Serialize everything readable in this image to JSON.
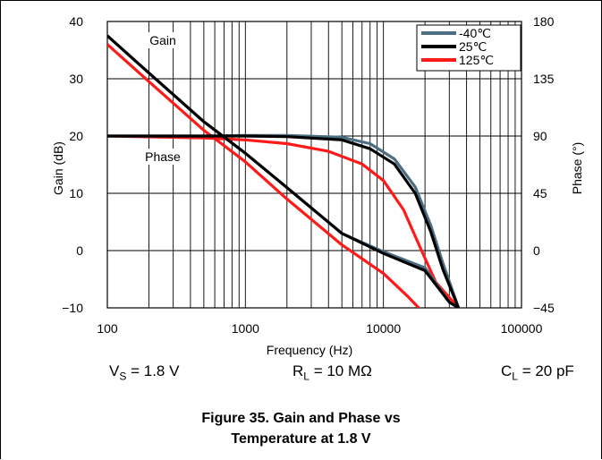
{
  "chart_data": {
    "type": "line",
    "title": "",
    "xlabel": "Frequency (Hz)",
    "ylabel": "Gain (dB)",
    "y2label": "Phase (°)",
    "xscale": "log",
    "xlim": [
      100,
      100000
    ],
    "ylim": [
      -10,
      40
    ],
    "y2lim": [
      -45,
      180
    ],
    "xticks": [
      "100",
      "1000",
      "10000",
      "100000"
    ],
    "yticks": [
      "40",
      "30",
      "20",
      "10",
      "0",
      "−10"
    ],
    "y2ticks": [
      "180",
      "135",
      "90",
      "45",
      "0",
      "−45"
    ],
    "grid": true,
    "legend_position": "top-right",
    "annotations": [
      "Gain",
      "Phase"
    ],
    "series": [
      {
        "name": "-40℃",
        "color": "#4a6f84",
        "gain": {
          "x": [
            100,
            200,
            500,
            1000,
            2000,
            5000,
            10000,
            20000,
            30000,
            35000
          ],
          "y": [
            37.5,
            31,
            22.5,
            17,
            11,
            3,
            -0.2,
            -3,
            -9,
            -10
          ]
        },
        "phase": {
          "x": [
            100,
            500,
            1000,
            2000,
            5000,
            8000,
            12000,
            17000,
            22000,
            27000,
            35000
          ],
          "y": [
            90,
            90,
            90.5,
            90.5,
            89,
            84,
            72,
            50,
            20,
            -10,
            -45
          ]
        }
      },
      {
        "name": "25℃",
        "color": "#000000",
        "gain": {
          "x": [
            100,
            200,
            500,
            1000,
            2000,
            5000,
            10000,
            20000,
            30000,
            35000
          ],
          "y": [
            37.5,
            31,
            22.5,
            17,
            11,
            3,
            -0.5,
            -3.5,
            -9,
            -10
          ]
        },
        "phase": {
          "x": [
            100,
            500,
            1000,
            2000,
            5000,
            8000,
            12000,
            17000,
            22000,
            27000,
            35000
          ],
          "y": [
            90,
            90,
            90,
            89.5,
            87,
            80,
            68,
            45,
            15,
            -15,
            -45
          ]
        }
      },
      {
        "name": "125℃",
        "color": "#ff1a1a",
        "gain": {
          "x": [
            100,
            200,
            500,
            1000,
            2000,
            5000,
            10000,
            15000,
            18000
          ],
          "y": [
            36,
            29.5,
            21,
            15.5,
            9,
            1,
            -4,
            -8,
            -10
          ]
        },
        "phase": {
          "x": [
            100,
            500,
            1000,
            2000,
            4000,
            7000,
            10000,
            14000,
            18000,
            24000,
            35000
          ],
          "y": [
            90,
            88.5,
            87,
            84,
            78,
            68,
            55,
            32,
            5,
            -25,
            -45
          ]
        }
      }
    ]
  },
  "conditions": {
    "vs_label": "V",
    "vs_sub": "S",
    "vs_value": " = 1.8 V",
    "rl_label": "R",
    "rl_sub": "L",
    "rl_value": " = 10 MΩ",
    "cl_label": "C",
    "cl_sub": "L",
    "cl_value": " = 20 pF"
  },
  "caption": {
    "line1": "Figure 35. Gain and Phase vs",
    "line2": "Temperature at 1.8 V"
  }
}
